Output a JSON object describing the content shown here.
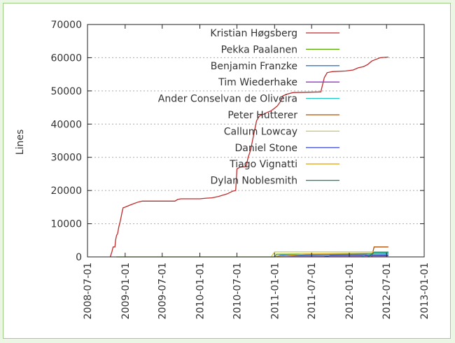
{
  "chart_data": {
    "type": "line",
    "title": "",
    "xlabel": "",
    "ylabel": "Lines",
    "ylim": [
      0,
      70000
    ],
    "yticks": [
      0,
      10000,
      20000,
      30000,
      40000,
      50000,
      60000,
      70000
    ],
    "xlim": [
      "2008-07-01",
      "2013-01-01"
    ],
    "xticks": [
      "2008-07-01",
      "2009-01-01",
      "2009-07-01",
      "2010-01-01",
      "2010-07-01",
      "2011-01-01",
      "2011-07-01",
      "2012-01-01",
      "2012-07-01",
      "2013-01-01"
    ],
    "grid": "horizontal dotted",
    "legend_position": "top-right",
    "series": [
      {
        "name": "Kristian Høgsberg",
        "color": "#c02a2a",
        "points": [
          [
            "2008-10-20",
            0
          ],
          [
            "2008-10-28",
            1500
          ],
          [
            "2008-11-03",
            3000
          ],
          [
            "2008-11-12",
            3000
          ],
          [
            "2008-11-15",
            5000
          ],
          [
            "2008-11-20",
            6500
          ],
          [
            "2008-11-25",
            7000
          ],
          [
            "2008-12-01",
            9000
          ],
          [
            "2008-12-07",
            10500
          ],
          [
            "2008-12-12",
            12000
          ],
          [
            "2008-12-17",
            13500
          ],
          [
            "2008-12-22",
            14800
          ],
          [
            "2009-01-01",
            15000
          ],
          [
            "2009-01-20",
            15500
          ],
          [
            "2009-02-10",
            16000
          ],
          [
            "2009-03-05",
            16500
          ],
          [
            "2009-03-25",
            16800
          ],
          [
            "2009-09-01",
            16800
          ],
          [
            "2009-09-15",
            17300
          ],
          [
            "2009-10-01",
            17500
          ],
          [
            "2010-01-01",
            17500
          ],
          [
            "2010-02-01",
            17700
          ],
          [
            "2010-03-01",
            17800
          ],
          [
            "2010-04-01",
            18200
          ],
          [
            "2010-05-15",
            19000
          ],
          [
            "2010-06-10",
            19800
          ],
          [
            "2010-06-25",
            20000
          ],
          [
            "2010-07-01",
            26500
          ],
          [
            "2010-07-15",
            27000
          ],
          [
            "2010-08-15",
            27200
          ],
          [
            "2010-08-25",
            30000
          ],
          [
            "2010-09-05",
            32000
          ],
          [
            "2010-09-15",
            35000
          ],
          [
            "2010-09-25",
            38000
          ],
          [
            "2010-10-05",
            41000
          ],
          [
            "2010-10-20",
            42500
          ],
          [
            "2010-11-10",
            43000
          ],
          [
            "2010-11-25",
            43500
          ],
          [
            "2010-12-15",
            44000
          ],
          [
            "2011-01-01",
            44800
          ],
          [
            "2011-01-15",
            45500
          ],
          [
            "2011-02-01",
            47000
          ],
          [
            "2011-02-10",
            48500
          ],
          [
            "2011-03-01",
            49000
          ],
          [
            "2011-04-01",
            49500
          ],
          [
            "2011-08-15",
            49700
          ],
          [
            "2011-09-01",
            54000
          ],
          [
            "2011-09-15",
            55500
          ],
          [
            "2011-10-10",
            55800
          ],
          [
            "2011-12-15",
            56000
          ],
          [
            "2012-01-20",
            56300
          ],
          [
            "2012-02-15",
            57000
          ],
          [
            "2012-03-10",
            57300
          ],
          [
            "2012-04-01",
            58000
          ],
          [
            "2012-04-20",
            59000
          ],
          [
            "2012-05-10",
            59500
          ],
          [
            "2012-06-01",
            60000
          ],
          [
            "2012-07-10",
            60200
          ]
        ]
      },
      {
        "name": "Pekka Paalanen",
        "color": "#55aa00",
        "points": [
          [
            "2008-11-20",
            0
          ],
          [
            "2011-01-01",
            0
          ],
          [
            "2011-01-10",
            800
          ],
          [
            "2012-05-01",
            1000
          ],
          [
            "2012-07-10",
            1500
          ]
        ]
      },
      {
        "name": "Benjamin Franzke",
        "color": "#3377cc",
        "points": [
          [
            "2011-01-01",
            0
          ],
          [
            "2011-02-01",
            500
          ],
          [
            "2012-04-01",
            800
          ],
          [
            "2012-07-10",
            1000
          ]
        ]
      },
      {
        "name": "Tim Wiederhake",
        "color": "#9933cc",
        "points": [
          [
            "2011-01-15",
            0
          ],
          [
            "2011-02-15",
            300
          ],
          [
            "2012-07-10",
            300
          ]
        ]
      },
      {
        "name": "Ander Conselvan de Oliveira",
        "color": "#22c3c3",
        "points": [
          [
            "2012-03-01",
            0
          ],
          [
            "2012-04-01",
            800
          ],
          [
            "2012-07-10",
            800
          ]
        ]
      },
      {
        "name": "Peter Hutterer",
        "color": "#b05000",
        "points": [
          [
            "2012-04-20",
            0
          ],
          [
            "2012-05-01",
            3000
          ],
          [
            "2012-07-10",
            3000
          ]
        ]
      },
      {
        "name": "Callum Lowcay",
        "color": "#cccc44",
        "points": [
          [
            "2010-12-15",
            0
          ],
          [
            "2011-01-01",
            1500
          ],
          [
            "2012-07-10",
            1500
          ]
        ]
      },
      {
        "name": "Daniel Stone",
        "color": "#4455cc",
        "points": [
          [
            "2011-09-01",
            0
          ],
          [
            "2011-10-01",
            400
          ],
          [
            "2012-07-10",
            500
          ]
        ]
      },
      {
        "name": "Tiago Vignatti",
        "color": "#ddaa33",
        "points": [
          [
            "2011-01-01",
            0
          ],
          [
            "2011-06-01",
            900
          ],
          [
            "2012-07-10",
            1200
          ]
        ]
      },
      {
        "name": "Dylan Noblesmith",
        "color": "#118866",
        "points": [
          [
            "2012-04-01",
            0
          ],
          [
            "2012-05-01",
            1400
          ],
          [
            "2012-07-10",
            1400
          ]
        ]
      }
    ]
  }
}
